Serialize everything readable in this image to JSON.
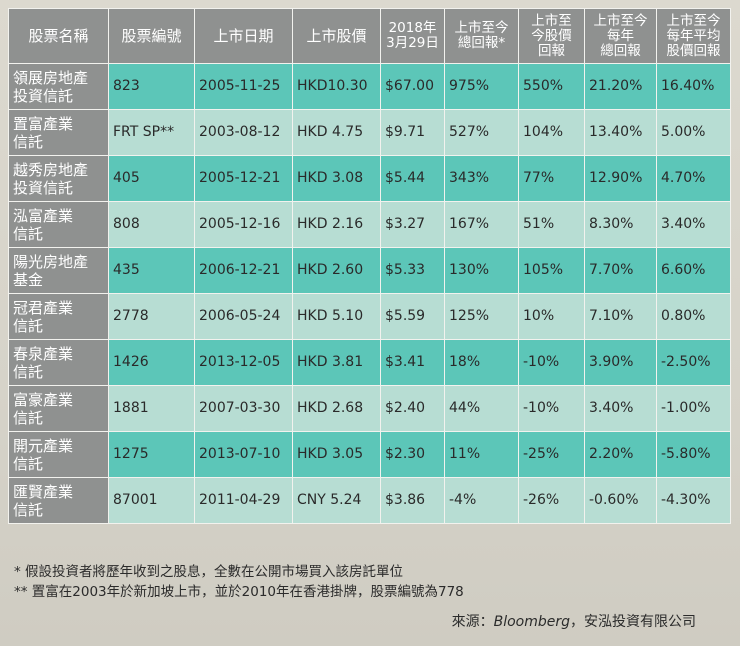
{
  "table": {
    "headers": [
      "股票名稱",
      "股票編號",
      "上市日期",
      "上市股價",
      [
        "2018年",
        "3月29日"
      ],
      [
        "上市至今",
        "總回報*"
      ],
      [
        "上市至",
        "今股價",
        "回報"
      ],
      [
        "上市至今",
        "每年",
        "總回報"
      ],
      [
        "上市至今",
        "每年平均",
        "股價回報"
      ]
    ],
    "rows": [
      {
        "name": [
          "領展房地產",
          "投資信託"
        ],
        "code": "823",
        "date": "2005-11-25",
        "ipo_price": "HKD10.30",
        "price_2018": "$67.00",
        "total_return": "975%",
        "price_return": "550%",
        "annual_total": "21.20%",
        "annual_price": "16.40%"
      },
      {
        "name": [
          "置富產業",
          "信託"
        ],
        "code": "FRT SP**",
        "date": "2003-08-12",
        "ipo_price": "HKD 4.75",
        "price_2018": "$9.71",
        "total_return": "527%",
        "price_return": "104%",
        "annual_total": "13.40%",
        "annual_price": "5.00%"
      },
      {
        "name": [
          "越秀房地產",
          "投資信託"
        ],
        "code": "405",
        "date": "2005-12-21",
        "ipo_price": "HKD 3.08",
        "price_2018": "$5.44",
        "total_return": "343%",
        "price_return": "77%",
        "annual_total": "12.90%",
        "annual_price": "4.70%"
      },
      {
        "name": [
          "泓富產業",
          "信託"
        ],
        "code": "808",
        "date": "2005-12-16",
        "ipo_price": "HKD 2.16",
        "price_2018": "$3.27",
        "total_return": "167%",
        "price_return": "51%",
        "annual_total": "8.30%",
        "annual_price": "3.40%"
      },
      {
        "name": [
          "陽光房地產",
          "基金"
        ],
        "code": "435",
        "date": "2006-12-21",
        "ipo_price": "HKD 2.60",
        "price_2018": "$5.33",
        "total_return": "130%",
        "price_return": "105%",
        "annual_total": "7.70%",
        "annual_price": "6.60%"
      },
      {
        "name": [
          "冠君產業",
          "信託"
        ],
        "code": "2778",
        "date": "2006-05-24",
        "ipo_price": "HKD 5.10",
        "price_2018": "$5.59",
        "total_return": "125%",
        "price_return": "10%",
        "annual_total": "7.10%",
        "annual_price": "0.80%"
      },
      {
        "name": [
          "春泉產業",
          "信託"
        ],
        "code": "1426",
        "date": "2013-12-05",
        "ipo_price": "HKD 3.81",
        "price_2018": "$3.41",
        "total_return": "18%",
        "price_return": "-10%",
        "annual_total": "3.90%",
        "annual_price": "-2.50%"
      },
      {
        "name": [
          "富豪產業",
          "信託"
        ],
        "code": "1881",
        "date": "2007-03-30",
        "ipo_price": "HKD 2.68",
        "price_2018": "$2.40",
        "total_return": "44%",
        "price_return": "-10%",
        "annual_total": "3.40%",
        "annual_price": "-1.00%"
      },
      {
        "name": [
          "開元產業",
          "信託"
        ],
        "code": "1275",
        "date": "2013-07-10",
        "ipo_price": "HKD 3.05",
        "price_2018": "$2.30",
        "total_return": "11%",
        "price_return": "-25%",
        "annual_total": "2.20%",
        "annual_price": "-5.80%"
      },
      {
        "name": [
          "匯賢產業",
          "信託"
        ],
        "code": "87001",
        "date": "2011-04-29",
        "ipo_price": "CNY 5.24",
        "price_2018": "$3.86",
        "total_return": "-4%",
        "price_return": "-26%",
        "annual_total": "-0.60%",
        "annual_price": "-4.30%"
      }
    ]
  },
  "notes": [
    "* 假設投資者將歷年收到之股息，全數在公開市場買入該房託單位",
    "** 置富在2003年於新加坡上市，並於2010年在香港掛牌，股票編號為778"
  ],
  "source": {
    "prefix": "來源：",
    "italic": "Bloomberg",
    "suffix": "，安泓投資有限公司"
  },
  "colors": {
    "header_gray": "#8f9190",
    "row_teal": "#5cc6b8",
    "row_light": "#b7ddd3"
  }
}
